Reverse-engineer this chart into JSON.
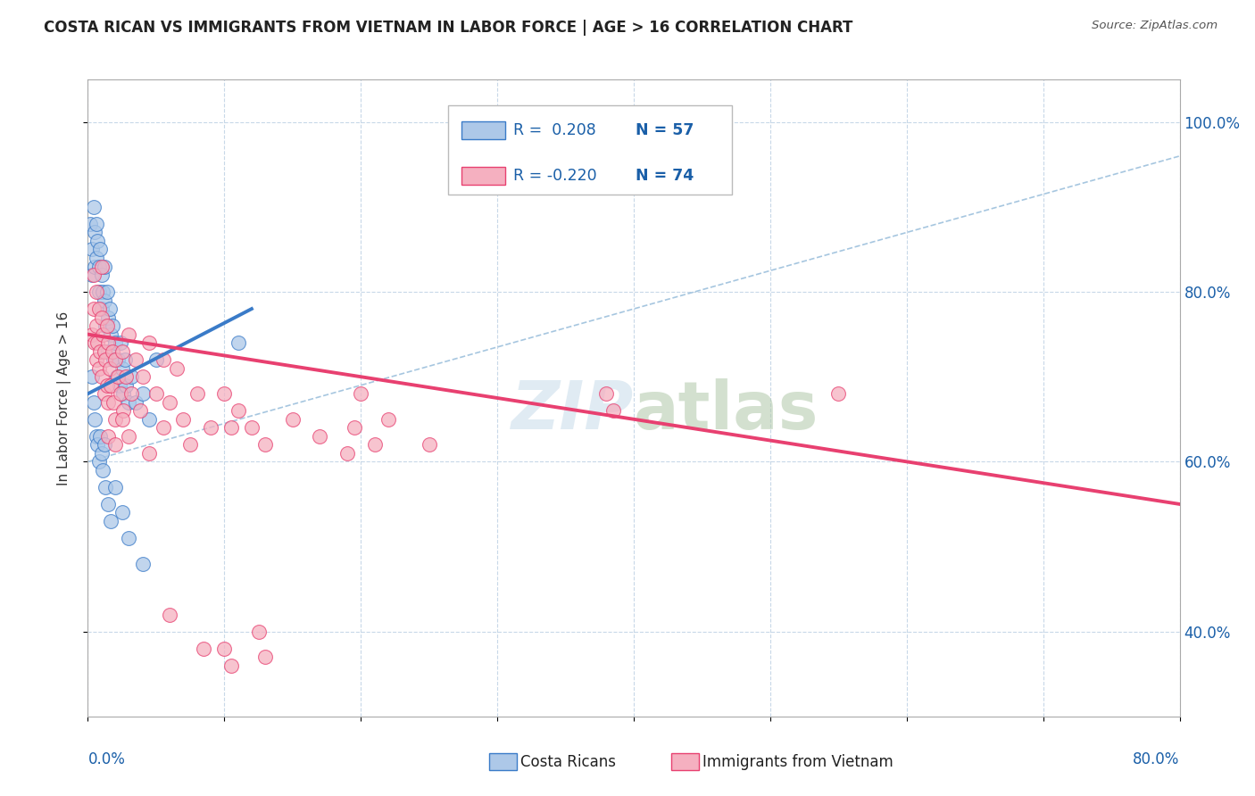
{
  "title": "COSTA RICAN VS IMMIGRANTS FROM VIETNAM IN LABOR FORCE | AGE > 16 CORRELATION CHART",
  "source": "Source: ZipAtlas.com",
  "ylabel": "In Labor Force | Age > 16",
  "xlim": [
    0.0,
    80.0
  ],
  "ylim": [
    30.0,
    105.0
  ],
  "yticks": [
    40.0,
    60.0,
    80.0,
    100.0
  ],
  "watermark": "ZIPatlas",
  "blue_color": "#adc8e8",
  "pink_color": "#f5b0c0",
  "blue_line_color": "#3a7bc8",
  "pink_line_color": "#e84070",
  "dashed_color": "#90b8d8",
  "scatter_blue": [
    [
      0.2,
      88
    ],
    [
      0.3,
      85
    ],
    [
      0.3,
      82
    ],
    [
      0.4,
      90
    ],
    [
      0.5,
      87
    ],
    [
      0.5,
      83
    ],
    [
      0.6,
      88
    ],
    [
      0.6,
      84
    ],
    [
      0.7,
      86
    ],
    [
      0.8,
      83
    ],
    [
      0.8,
      80
    ],
    [
      0.9,
      85
    ],
    [
      1.0,
      82
    ],
    [
      1.0,
      78
    ],
    [
      1.1,
      80
    ],
    [
      1.2,
      83
    ],
    [
      1.2,
      79
    ],
    [
      1.3,
      76
    ],
    [
      1.4,
      80
    ],
    [
      1.5,
      77
    ],
    [
      1.5,
      73
    ],
    [
      1.6,
      78
    ],
    [
      1.7,
      75
    ],
    [
      1.8,
      76
    ],
    [
      1.9,
      72
    ],
    [
      2.0,
      74
    ],
    [
      2.1,
      70
    ],
    [
      2.2,
      72
    ],
    [
      2.3,
      69
    ],
    [
      2.4,
      74
    ],
    [
      2.5,
      71
    ],
    [
      2.6,
      68
    ],
    [
      2.7,
      72
    ],
    [
      2.8,
      69
    ],
    [
      3.0,
      67
    ],
    [
      3.2,
      70
    ],
    [
      3.5,
      67
    ],
    [
      4.0,
      68
    ],
    [
      4.5,
      65
    ],
    [
      5.0,
      72
    ],
    [
      0.3,
      70
    ],
    [
      0.4,
      67
    ],
    [
      0.5,
      65
    ],
    [
      0.6,
      63
    ],
    [
      0.7,
      62
    ],
    [
      0.8,
      60
    ],
    [
      0.9,
      63
    ],
    [
      1.0,
      61
    ],
    [
      1.1,
      59
    ],
    [
      1.2,
      62
    ],
    [
      1.3,
      57
    ],
    [
      1.5,
      55
    ],
    [
      1.7,
      53
    ],
    [
      2.0,
      57
    ],
    [
      2.5,
      54
    ],
    [
      3.0,
      51
    ],
    [
      4.0,
      48
    ],
    [
      11.0,
      74
    ]
  ],
  "scatter_pink": [
    [
      0.3,
      75
    ],
    [
      0.4,
      78
    ],
    [
      0.5,
      74
    ],
    [
      0.6,
      76
    ],
    [
      0.6,
      72
    ],
    [
      0.7,
      74
    ],
    [
      0.8,
      78
    ],
    [
      0.8,
      71
    ],
    [
      0.9,
      73
    ],
    [
      1.0,
      77
    ],
    [
      1.0,
      70
    ],
    [
      1.1,
      75
    ],
    [
      1.2,
      73
    ],
    [
      1.2,
      68
    ],
    [
      1.3,
      72
    ],
    [
      1.4,
      76
    ],
    [
      1.4,
      69
    ],
    [
      1.5,
      74
    ],
    [
      1.5,
      67
    ],
    [
      1.6,
      71
    ],
    [
      1.7,
      69
    ],
    [
      1.8,
      73
    ],
    [
      1.9,
      67
    ],
    [
      2.0,
      72
    ],
    [
      2.0,
      65
    ],
    [
      2.2,
      70
    ],
    [
      2.4,
      68
    ],
    [
      2.5,
      73
    ],
    [
      2.6,
      66
    ],
    [
      2.8,
      70
    ],
    [
      3.0,
      75
    ],
    [
      3.2,
      68
    ],
    [
      3.5,
      72
    ],
    [
      3.8,
      66
    ],
    [
      4.0,
      70
    ],
    [
      4.5,
      74
    ],
    [
      5.0,
      68
    ],
    [
      5.5,
      72
    ],
    [
      6.0,
      67
    ],
    [
      6.5,
      71
    ],
    [
      7.0,
      65
    ],
    [
      8.0,
      68
    ],
    [
      9.0,
      64
    ],
    [
      10.0,
      68
    ],
    [
      10.5,
      64
    ],
    [
      11.0,
      66
    ],
    [
      12.0,
      64
    ],
    [
      13.0,
      62
    ],
    [
      15.0,
      65
    ],
    [
      17.0,
      63
    ],
    [
      19.0,
      61
    ],
    [
      20.0,
      68
    ],
    [
      22.0,
      65
    ],
    [
      25.0,
      62
    ],
    [
      1.5,
      63
    ],
    [
      2.0,
      62
    ],
    [
      2.5,
      65
    ],
    [
      3.0,
      63
    ],
    [
      4.5,
      61
    ],
    [
      5.5,
      64
    ],
    [
      7.5,
      62
    ],
    [
      19.5,
      64
    ],
    [
      21.0,
      62
    ],
    [
      38.0,
      68
    ],
    [
      38.5,
      66
    ],
    [
      55.0,
      68
    ],
    [
      0.4,
      82
    ],
    [
      0.6,
      80
    ],
    [
      1.0,
      83
    ],
    [
      6.0,
      42
    ],
    [
      8.5,
      38
    ],
    [
      10.0,
      38
    ],
    [
      10.5,
      36
    ],
    [
      12.5,
      40
    ],
    [
      13.0,
      37
    ]
  ],
  "blue_line_x": [
    0.0,
    12.0
  ],
  "blue_line_y": [
    68.0,
    78.0
  ],
  "pink_line_x": [
    0.0,
    80.0
  ],
  "pink_line_y": [
    75.0,
    55.0
  ],
  "dashed_line_x": [
    0.0,
    80.0
  ],
  "dashed_line_y": [
    60.0,
    96.0
  ]
}
